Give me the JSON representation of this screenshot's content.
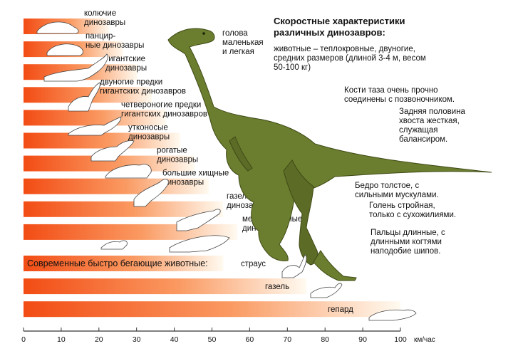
{
  "chart_data": {
    "type": "bar",
    "orientation": "horizontal",
    "title": "Скоростные характеристики различных динозавров:",
    "xlabel": "км/час",
    "xlim": [
      0,
      100
    ],
    "xticks": [
      0,
      10,
      20,
      30,
      40,
      50,
      60,
      70,
      80,
      90,
      100
    ],
    "grid": false,
    "categories": [
      [
        "колючие",
        "динозавры"
      ],
      [
        "панцир-",
        "ные динозавры"
      ],
      [
        "гигантские",
        "динозавры"
      ],
      [
        "двуногие предки",
        "гигантских динозавров"
      ],
      [
        "четвероногие предки",
        "гигантских динозавров"
      ],
      [
        "утконосые",
        "динозавры"
      ],
      [
        "рогатые",
        "динозавры"
      ],
      [
        "большие хищные",
        "динозавры"
      ],
      [
        "газелевые",
        "динозавры"
      ],
      [
        "мелкие хищные",
        "динозавры"
      ],
      [
        "страус"
      ],
      [
        "газель"
      ],
      [
        "гепард"
      ]
    ],
    "values": [
      6,
      7,
      8,
      9,
      10,
      15,
      20,
      25,
      40,
      45,
      53,
      75,
      100
    ],
    "modern_group_heading": "Современные быстро бегающие животные:",
    "colors": {
      "bar_start": "#f24c14",
      "bar_end": "#fffaf0",
      "dinosaur_body": "#6b7d2e"
    },
    "annotations": {
      "head": [
        "голова",
        "маленькая",
        "и легкая"
      ],
      "description": [
        "животные – теплокровные, двуногие,",
        "средних размеров (длиной 3-4 м, весом",
        "50-100 кг)"
      ],
      "pelvis": [
        "Кости таза очень прочно",
        "соединены с позвоночником."
      ],
      "tail": [
        "Задняя половина",
        "хвоста жесткая,",
        "служащая",
        "балансиром."
      ],
      "thigh": [
        "Бедро толстое, с",
        "сильными мускулами."
      ],
      "shin": [
        "Голень стройная,",
        "только с сухожилиями."
      ],
      "toes": [
        "Пальцы длинные, с",
        "длинными когтями",
        "наподобие шипов."
      ]
    }
  }
}
